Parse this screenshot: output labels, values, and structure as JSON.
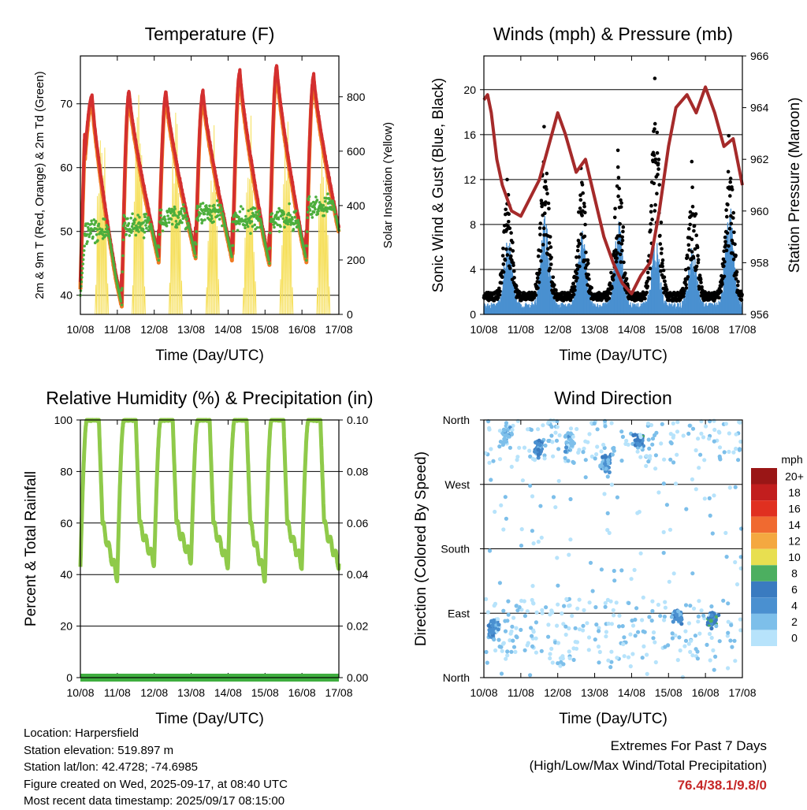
{
  "colors": {
    "t2m": "#d32f2f",
    "t9m": "#f07a22",
    "td": "#4cae3c",
    "solar": "#f6e05e",
    "wind": "#4a90d0",
    "gust": "#000000",
    "pressure": "#a52a2a",
    "rh": "#8fca4a",
    "precip": "#3fae3f",
    "extremes": "#c62828"
  },
  "x_ticks": [
    "10/08",
    "11/08",
    "12/08",
    "13/08",
    "14/08",
    "15/08",
    "16/08",
    "17/08"
  ],
  "chart_data": [
    {
      "id": "temperature",
      "type": "line",
      "title": "Temperature (F)",
      "xlabel": "Time (Day/UTC)",
      "ylabel": "2m & 9m T (Red, Orange) & 2m Td (Green)",
      "y2label": "Solar Insolation (Yellow)",
      "xlim": [
        0,
        7
      ],
      "ylim": [
        37,
        77.5
      ],
      "yticks": [
        40,
        50,
        60,
        70
      ],
      "y2lim": [
        0,
        950
      ],
      "y2ticks": [
        0,
        200,
        400,
        600,
        800
      ],
      "grid": true,
      "daily_max_temp": [
        71.2,
        72.0,
        71.8,
        72.0,
        75.2,
        76.0,
        74.5
      ],
      "daily_min_temp": [
        38.5,
        39.0,
        46.0,
        46.5,
        46.0,
        45.5,
        46.0
      ],
      "daily_solar_peak": [
        880,
        920,
        860,
        800,
        820,
        860,
        780
      ]
    },
    {
      "id": "winds",
      "type": "line",
      "title": "Winds (mph) & Pressure (mb)",
      "xlabel": "Time (Day/UTC)",
      "ylabel": "Sonic Wind & Gust (Blue, Black)",
      "y2label": "Station Pressure (Maroon)",
      "xlim": [
        0,
        7
      ],
      "ylim": [
        0,
        23
      ],
      "yticks": [
        0,
        4,
        8,
        12,
        16,
        20
      ],
      "y2lim": [
        956,
        966
      ],
      "y2ticks": [
        956,
        958,
        960,
        962,
        964,
        966
      ],
      "grid": true,
      "pressure_series": {
        "x": [
          0,
          0.1,
          0.2,
          0.35,
          0.5,
          0.75,
          1.0,
          1.25,
          1.5,
          1.75,
          2.0,
          2.2,
          2.5,
          2.75,
          3.0,
          3.25,
          3.5,
          3.75,
          4.0,
          4.25,
          4.5,
          4.75,
          5.0,
          5.2,
          5.5,
          5.75,
          6.0,
          6.25,
          6.5,
          6.75,
          7.0
        ],
        "y": [
          964.3,
          964.5,
          963.8,
          962.0,
          961.0,
          960.0,
          959.8,
          960.5,
          961.2,
          962.5,
          963.8,
          963.0,
          961.5,
          962.0,
          960.5,
          959.0,
          958.0,
          957.2,
          956.8,
          957.5,
          958.0,
          960.0,
          962.5,
          964.0,
          964.5,
          963.8,
          964.8,
          963.8,
          962.5,
          962.8,
          961.0
        ]
      },
      "daily_wind_peak": [
        7.0,
        8.5,
        7.5,
        8.0,
        6.5,
        6.0,
        10.0
      ],
      "daily_gust_peak": [
        12.0,
        16.7,
        13.0,
        14.6,
        21.0,
        13.6,
        15.9
      ]
    },
    {
      "id": "humidity",
      "type": "line",
      "title": "Relative Humidity (%) & Precipitation (in)",
      "xlabel": "Time (Day/UTC)",
      "ylabel": "Percent & Total Rainfall",
      "xlim": [
        0,
        7
      ],
      "ylim": [
        0,
        100
      ],
      "yticks": [
        0,
        20,
        40,
        60,
        80,
        100
      ],
      "y2lim": [
        0,
        0.1
      ],
      "y2ticks": [
        "0.00",
        "0.02",
        "0.04",
        "0.06",
        "0.08",
        "0.10"
      ],
      "grid": true,
      "daily_rh_min": [
        43,
        39,
        45,
        46,
        44,
        39,
        44
      ],
      "daily_rh_max": [
        100,
        100,
        100,
        100,
        100,
        100,
        100
      ],
      "precip_total": 0.0
    },
    {
      "id": "direction",
      "type": "scatter",
      "title": "Wind Direction",
      "xlabel": "Time (Day/UTC)",
      "ylabel": "Direction (Colored By Speed)",
      "xlim": [
        0,
        7
      ],
      "ylim": [
        0,
        360
      ],
      "yticks": [
        "North",
        "East",
        "South",
        "West",
        "North"
      ],
      "colorbar": {
        "title": "mph",
        "labels": [
          "0",
          "2",
          "4",
          "6",
          "8",
          "10",
          "12",
          "14",
          "16",
          "18",
          "20+"
        ],
        "colors": [
          "#b7e3fb",
          "#7dbfea",
          "#4a90d0",
          "#3a7bc0",
          "#4caf60",
          "#e8df50",
          "#f4a840",
          "#f06a30",
          "#e03020",
          "#c21e1e",
          "#9a1616"
        ]
      }
    }
  ],
  "info": {
    "location": "Location: Harpersfield",
    "elevation": "Station elevation: 519.897 m",
    "latlon": "Station lat/lon: 42.4728; -74.6985",
    "created": "Figure created on Wed, 2025-09-17, at 08:40 UTC",
    "recent": "Most recent data timestamp: 2025/09/17 08:15:00"
  },
  "extremes": {
    "title": "Extremes For Past 7 Days",
    "subtitle": "(High/Low/Max Wind/Total Precipitation)",
    "values": "76.4/38.1/9.8/0"
  }
}
